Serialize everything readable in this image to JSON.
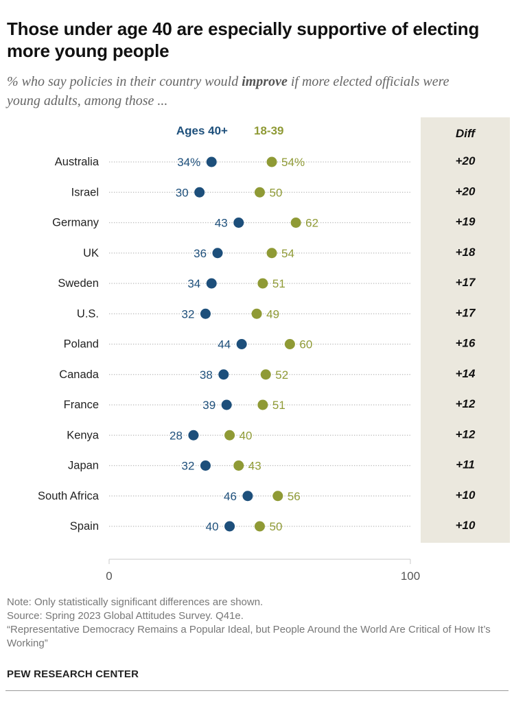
{
  "title": "Those under age 40 are especially supportive of electing more young people",
  "subtitle": {
    "before": "% who say policies in their country would ",
    "emphasis": "improve",
    "after": " if more elected officials were young adults, among those ..."
  },
  "colors": {
    "older": "#1d4f7b",
    "younger": "#8f9a35",
    "diff_bg": "#ebe8de",
    "dots_line": "#b8b8b8"
  },
  "chart_data": {
    "type": "dot",
    "xlim": [
      0,
      100
    ],
    "x_ticks": [
      "0",
      "100"
    ],
    "legend": {
      "older": "Ages 40+",
      "younger": "18-39"
    },
    "diff_header": "Diff",
    "categories": [
      "Australia",
      "Israel",
      "Germany",
      "UK",
      "Sweden",
      "U.S.",
      "Poland",
      "Canada",
      "France",
      "Kenya",
      "Japan",
      "South Africa",
      "Spain"
    ],
    "series": [
      {
        "name": "Ages 40+",
        "values": [
          34,
          30,
          43,
          36,
          34,
          32,
          44,
          38,
          39,
          28,
          32,
          46,
          40
        ]
      },
      {
        "name": "18-39",
        "values": [
          54,
          50,
          62,
          54,
          51,
          49,
          60,
          52,
          51,
          40,
          43,
          56,
          50
        ]
      }
    ],
    "older_labels": [
      "34%",
      "30",
      "43",
      "36",
      "34",
      "32",
      "44",
      "38",
      "39",
      "28",
      "32",
      "46",
      "40"
    ],
    "younger_labels": [
      "54%",
      "50",
      "62",
      "54",
      "51",
      "49",
      "60",
      "52",
      "51",
      "40",
      "43",
      "56",
      "50"
    ],
    "diff": [
      "+20",
      "+20",
      "+19",
      "+18",
      "+17",
      "+17",
      "+16",
      "+14",
      "+12",
      "+12",
      "+11",
      "+10",
      "+10"
    ]
  },
  "notes": [
    "Note: Only statistically significant differences are shown.",
    "Source: Spring 2023 Global Attitudes Survey. Q41e.",
    "“Representative Democracy Remains a Popular Ideal, but People Around the World Are Critical of How It’s Working”"
  ],
  "credit": "PEW RESEARCH CENTER"
}
